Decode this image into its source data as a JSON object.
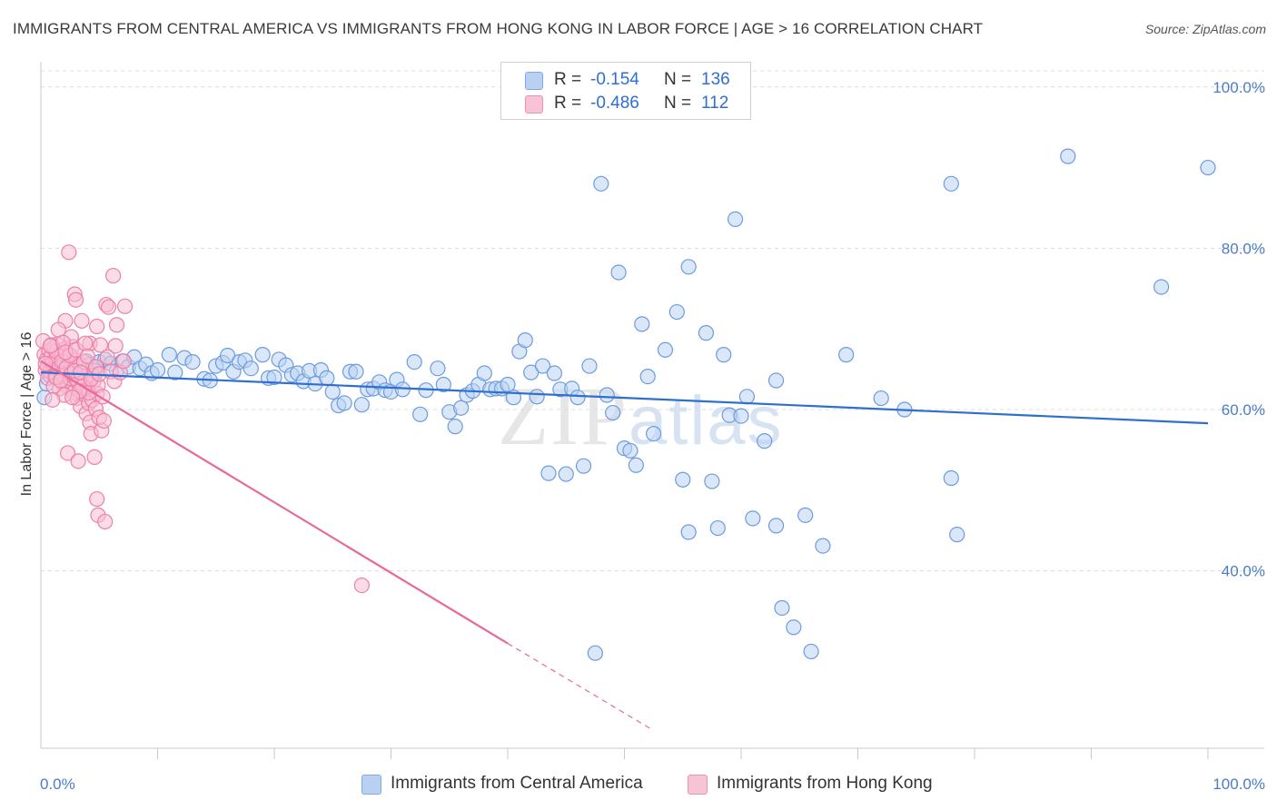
{
  "header": {
    "title": "IMMIGRANTS FROM CENTRAL AMERICA VS IMMIGRANTS FROM HONG KONG IN LABOR FORCE | AGE > 16 CORRELATION CHART",
    "source": "Source: ZipAtlas.com"
  },
  "watermark": {
    "zip": "ZIP",
    "atlas": "atlas"
  },
  "legend": {
    "rows": [
      {
        "label": "R =",
        "r": "-0.154",
        "n_label": "N =",
        "n": "136",
        "color": "#7fa9e6",
        "fill": "#b9d0f2"
      },
      {
        "label": "R =",
        "r": "-0.486",
        "n_label": "N =",
        "n": "112",
        "color": "#f08fb0",
        "fill": "#f8c3d5"
      }
    ]
  },
  "bottom_legend": [
    {
      "label": "Immigrants from Central America",
      "fill": "#b9d0f2",
      "color": "#7fa9e6"
    },
    {
      "label": "Immigrants from Hong Kong",
      "fill": "#f8c3d5",
      "color": "#f08fb0"
    }
  ],
  "chart_data": {
    "type": "scatter",
    "title": "IMMIGRANTS FROM CENTRAL AMERICA VS IMMIGRANTS FROM HONG KONG IN LABOR FORCE | AGE > 16 CORRELATION CHART",
    "xlabel": "",
    "ylabel": "In Labor Force | Age > 16",
    "xlim": [
      0,
      100
    ],
    "ylim": [
      18,
      102
    ],
    "x_tick_labels": [
      "0.0%",
      "100.0%"
    ],
    "y_ticks": [
      40,
      60,
      80,
      100
    ],
    "y_tick_labels": [
      "40.0%",
      "60.0%",
      "80.0%",
      "100.0%"
    ],
    "grid": "horizontal dashed",
    "series": [
      {
        "name": "Immigrants from Central America",
        "color": "#6d9be0",
        "fill": "#bcd3f3",
        "trend": {
          "x": [
            0,
            100
          ],
          "y": [
            64.6,
            58.3
          ],
          "line_color": "#2e6fd1"
        },
        "points": [
          [
            0.3,
            61.5
          ],
          [
            0.5,
            63.2
          ],
          [
            0.8,
            64.2
          ],
          [
            1.2,
            64.5
          ],
          [
            1.5,
            65.8
          ],
          [
            1.8,
            66.2
          ],
          [
            2,
            63.8
          ],
          [
            2.2,
            64.9
          ],
          [
            2.5,
            65.2
          ],
          [
            2.8,
            64.1
          ],
          [
            3,
            65.5
          ],
          [
            3.3,
            63.9
          ],
          [
            3.6,
            64.8
          ],
          [
            3.9,
            66.0
          ],
          [
            4.2,
            65.6
          ],
          [
            4.6,
            64.3
          ],
          [
            5,
            65.9
          ],
          [
            5.5,
            66.2
          ],
          [
            6,
            65.7
          ],
          [
            6.5,
            64.8
          ],
          [
            7,
            66.0
          ],
          [
            7.5,
            65.3
          ],
          [
            8,
            66.5
          ],
          [
            8.5,
            65.1
          ],
          [
            9,
            65.6
          ],
          [
            9.5,
            64.5
          ],
          [
            10,
            64.9
          ],
          [
            11,
            66.8
          ],
          [
            11.5,
            64.6
          ],
          [
            12.3,
            66.4
          ],
          [
            13,
            65.9
          ],
          [
            14,
            63.8
          ],
          [
            14.5,
            63.6
          ],
          [
            15,
            65.4
          ],
          [
            15.6,
            65.8
          ],
          [
            16,
            66.7
          ],
          [
            16.5,
            64.7
          ],
          [
            17,
            65.9
          ],
          [
            17.5,
            66.1
          ],
          [
            18,
            65.1
          ],
          [
            19,
            66.8
          ],
          [
            19.5,
            63.9
          ],
          [
            20,
            64.0
          ],
          [
            20.4,
            66.2
          ],
          [
            21,
            65.5
          ],
          [
            21.5,
            64.3
          ],
          [
            22,
            64.5
          ],
          [
            22.5,
            63.5
          ],
          [
            23,
            64.8
          ],
          [
            23.5,
            63.2
          ],
          [
            24,
            64.9
          ],
          [
            24.5,
            63.9
          ],
          [
            25,
            62.2
          ],
          [
            25.5,
            60.5
          ],
          [
            26,
            60.8
          ],
          [
            26.5,
            64.7
          ],
          [
            27,
            64.7
          ],
          [
            27.5,
            60.6
          ],
          [
            28,
            62.5
          ],
          [
            28.5,
            62.6
          ],
          [
            29,
            63.4
          ],
          [
            29.5,
            62.4
          ],
          [
            30,
            62.2
          ],
          [
            30.5,
            63.7
          ],
          [
            31,
            62.5
          ],
          [
            32,
            65.9
          ],
          [
            32.5,
            59.4
          ],
          [
            33,
            62.4
          ],
          [
            34,
            65.1
          ],
          [
            34.5,
            63.1
          ],
          [
            35,
            59.7
          ],
          [
            35.5,
            57.9
          ],
          [
            36,
            60.2
          ],
          [
            36.5,
            61.8
          ],
          [
            37,
            62.3
          ],
          [
            37.5,
            63.1
          ],
          [
            38,
            64.5
          ],
          [
            38.5,
            62.5
          ],
          [
            39,
            62.6
          ],
          [
            39.5,
            62.6
          ],
          [
            40,
            63.1
          ],
          [
            40.5,
            61.5
          ],
          [
            41,
            67.2
          ],
          [
            41.5,
            68.6
          ],
          [
            42,
            64.6
          ],
          [
            42.5,
            61.6
          ],
          [
            43,
            65.4
          ],
          [
            43.5,
            52.1
          ],
          [
            44,
            64.5
          ],
          [
            44.5,
            62.5
          ],
          [
            45,
            52.0
          ],
          [
            45.5,
            62.6
          ],
          [
            46,
            61.5
          ],
          [
            46.5,
            53.0
          ],
          [
            47,
            65.4
          ],
          [
            47.5,
            29.8
          ],
          [
            48,
            88.0
          ],
          [
            48.5,
            61.8
          ],
          [
            49,
            59.6
          ],
          [
            49.5,
            77.0
          ],
          [
            50,
            55.2
          ],
          [
            50.5,
            54.9
          ],
          [
            51,
            53.1
          ],
          [
            51.5,
            70.6
          ],
          [
            52,
            64.1
          ],
          [
            52.5,
            57.0
          ],
          [
            53.5,
            67.4
          ],
          [
            54.5,
            72.1
          ],
          [
            55,
            51.3
          ],
          [
            55.5,
            44.8
          ],
          [
            55.5,
            77.7
          ],
          [
            57,
            69.5
          ],
          [
            57.5,
            51.1
          ],
          [
            58,
            45.3
          ],
          [
            58.5,
            66.8
          ],
          [
            59,
            59.3
          ],
          [
            59.5,
            83.6
          ],
          [
            60,
            59.2
          ],
          [
            60.5,
            61.6
          ],
          [
            61,
            46.5
          ],
          [
            62,
            56.1
          ],
          [
            63,
            63.6
          ],
          [
            63,
            45.6
          ],
          [
            63.5,
            35.4
          ],
          [
            64.5,
            33.0
          ],
          [
            65.5,
            46.9
          ],
          [
            66,
            30.0
          ],
          [
            67,
            43.1
          ],
          [
            69,
            66.8
          ],
          [
            72,
            61.4
          ],
          [
            74,
            60.0
          ],
          [
            78,
            88.0
          ],
          [
            78,
            51.5
          ],
          [
            78.5,
            44.5
          ],
          [
            88,
            91.4
          ],
          [
            96,
            75.2
          ],
          [
            100,
            90.0
          ]
        ]
      },
      {
        "name": "Immigrants from Hong Kong",
        "color": "#ee7fa6",
        "fill": "#f7c0d3",
        "trend": {
          "x": [
            0,
            40
          ],
          "y": [
            66.0,
            31.0
          ],
          "x_dashed_end": 52.5,
          "y_dashed_end": 20.2,
          "line_color": "#e8689a"
        },
        "points": [
          [
            0.2,
            68.5
          ],
          [
            0.3,
            66.8
          ],
          [
            0.4,
            64.9
          ],
          [
            0.5,
            66.2
          ],
          [
            0.6,
            65.4
          ],
          [
            0.7,
            67.3
          ],
          [
            0.8,
            64.7
          ],
          [
            0.9,
            66.6
          ],
          [
            1.0,
            65.8
          ],
          [
            1.1,
            67.6
          ],
          [
            1.2,
            64.1
          ],
          [
            1.3,
            66.3
          ],
          [
            1.4,
            68.1
          ],
          [
            1.5,
            65.1
          ],
          [
            1.6,
            67.0
          ],
          [
            1.7,
            64.3
          ],
          [
            1.8,
            66.9
          ],
          [
            1.9,
            63.2
          ],
          [
            2.0,
            65.9
          ],
          [
            2.1,
            67.5
          ],
          [
            2.2,
            64.6
          ],
          [
            2.3,
            62.8
          ],
          [
            2.4,
            66.4
          ],
          [
            2.5,
            63.9
          ],
          [
            2.6,
            65.2
          ],
          [
            2.7,
            67.8
          ],
          [
            2.8,
            62.1
          ],
          [
            2.9,
            64.0
          ],
          [
            3.0,
            66.1
          ],
          [
            3.1,
            61.4
          ],
          [
            3.2,
            63.3
          ],
          [
            3.3,
            65.6
          ],
          [
            3.4,
            60.4
          ],
          [
            3.5,
            62.7
          ],
          [
            3.6,
            64.5
          ],
          [
            3.7,
            61.9
          ],
          [
            3.8,
            63.6
          ],
          [
            3.9,
            59.5
          ],
          [
            4.0,
            62.5
          ],
          [
            4.1,
            60.8
          ],
          [
            4.2,
            58.4
          ],
          [
            4.3,
            57.0
          ],
          [
            4.4,
            61.2
          ],
          [
            4.5,
            63.4
          ],
          [
            4.6,
            64.8
          ],
          [
            4.7,
            60.1
          ],
          [
            4.8,
            62.0
          ],
          [
            5.0,
            59.0
          ],
          [
            5.2,
            57.4
          ],
          [
            5.4,
            58.6
          ],
          [
            2.4,
            79.5
          ],
          [
            6.2,
            76.6
          ],
          [
            2.9,
            74.3
          ],
          [
            3.0,
            73.6
          ],
          [
            5.6,
            73.0
          ],
          [
            5.8,
            72.7
          ],
          [
            7.2,
            72.8
          ],
          [
            3.5,
            71.0
          ],
          [
            2.1,
            71.0
          ],
          [
            4.8,
            70.3
          ],
          [
            6.5,
            70.5
          ],
          [
            1.5,
            69.9
          ],
          [
            2.6,
            69.0
          ],
          [
            4.2,
            68.2
          ],
          [
            5.1,
            68.0
          ],
          [
            6.4,
            67.9
          ],
          [
            2.3,
            54.6
          ],
          [
            3.2,
            53.6
          ],
          [
            4.6,
            54.1
          ],
          [
            4.8,
            48.9
          ],
          [
            4.9,
            46.9
          ],
          [
            5.5,
            46.1
          ],
          [
            27.5,
            38.2
          ],
          [
            1.3,
            67.2
          ],
          [
            1.8,
            66.0
          ],
          [
            2.2,
            65.2
          ],
          [
            2.6,
            64.4
          ],
          [
            3.1,
            63.7
          ],
          [
            3.6,
            62.9
          ],
          [
            4.1,
            62.1
          ],
          [
            0.9,
            68.0
          ],
          [
            1.6,
            62.6
          ],
          [
            2.0,
            61.8
          ],
          [
            2.5,
            66.7
          ],
          [
            2.9,
            64.8
          ],
          [
            3.3,
            62.3
          ],
          [
            3.7,
            65.9
          ],
          [
            4.4,
            64.2
          ],
          [
            4.9,
            63.0
          ],
          [
            5.3,
            61.6
          ],
          [
            0.4,
            65.7
          ],
          [
            0.6,
            63.9
          ],
          [
            0.8,
            67.9
          ],
          [
            1.1,
            62.9
          ],
          [
            1.3,
            64.0
          ],
          [
            1.7,
            63.6
          ],
          [
            1.9,
            68.3
          ],
          [
            2.1,
            67.1
          ],
          [
            2.7,
            61.5
          ],
          [
            3.0,
            67.4
          ],
          [
            3.4,
            64.6
          ],
          [
            3.8,
            68.2
          ],
          [
            4.0,
            66.6
          ],
          [
            4.3,
            63.8
          ],
          [
            4.7,
            65.3
          ],
          [
            5.0,
            64.4
          ],
          [
            5.7,
            66.5
          ],
          [
            6.0,
            64.7
          ],
          [
            6.3,
            63.5
          ],
          [
            6.8,
            64.6
          ],
          [
            7.1,
            66.0
          ],
          [
            1.0,
            61.2
          ]
        ]
      }
    ]
  }
}
